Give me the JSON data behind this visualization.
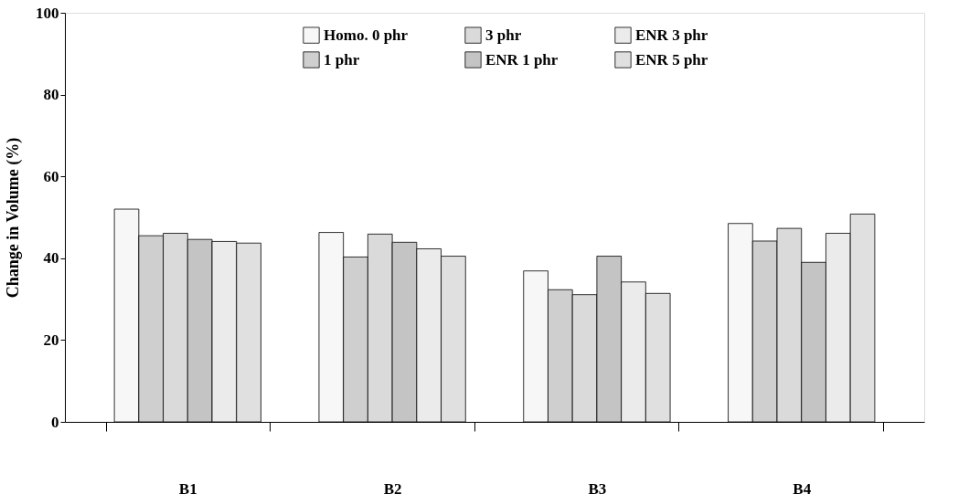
{
  "chart_data": {
    "type": "bar",
    "ylabel": "Change in Volume (%)",
    "categories": [
      "B1",
      "B2",
      "B3",
      "B4"
    ],
    "series": [
      {
        "name": "Homo. 0 phr",
        "color": "#f7f7f7",
        "values": [
          52.0,
          46.3,
          36.9,
          48.5
        ]
      },
      {
        "name": "1 phr",
        "color": "#cfcfcf",
        "values": [
          45.5,
          40.3,
          32.3,
          44.2
        ]
      },
      {
        "name": "3 phr",
        "color": "#dadada",
        "values": [
          46.1,
          45.9,
          31.1,
          47.3
        ]
      },
      {
        "name": "ENR 1 phr",
        "color": "#c4c4c4",
        "values": [
          44.6,
          43.9,
          40.5,
          39.0
        ]
      },
      {
        "name": "ENR 3 phr",
        "color": "#ebebeb",
        "values": [
          44.1,
          42.3,
          34.2,
          46.1
        ]
      },
      {
        "name": "ENR 5 phr",
        "color": "#e0e0e0",
        "values": [
          43.7,
          40.5,
          31.4,
          50.8
        ]
      }
    ],
    "ylim": [
      0,
      100
    ],
    "yticks": [
      0,
      20,
      40,
      60,
      80,
      100
    ],
    "grid": false,
    "legend": "top"
  }
}
